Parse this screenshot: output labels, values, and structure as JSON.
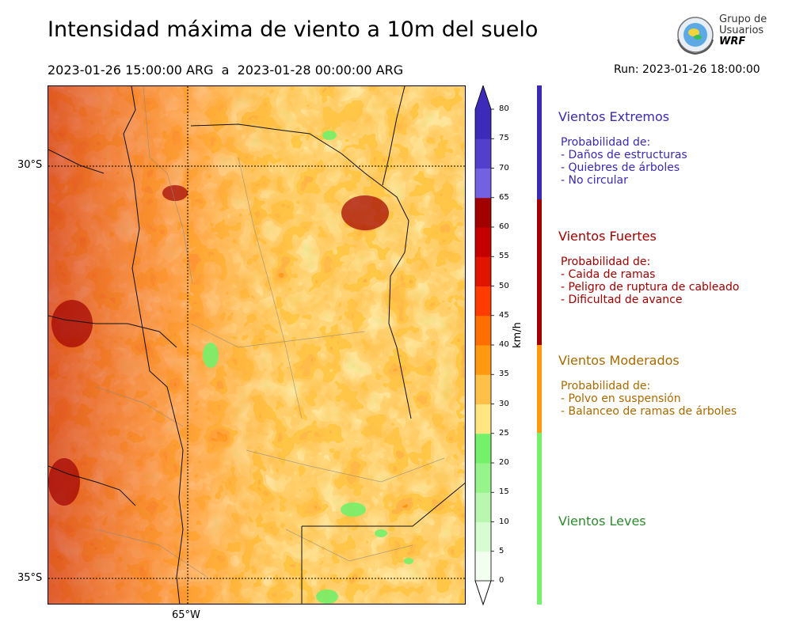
{
  "title": "Intensidad máxima de viento a 10m del suelo",
  "subtitle": "2023-01-26 15:00:00 ARG  a  2023-01-28 00:00:00 ARG",
  "run": "Run: 2023-01-26 18:00:00",
  "logo": {
    "line1": "Grupo de",
    "line2": "Usuarios",
    "line3": "WRF"
  },
  "map": {
    "lat_labels": [
      "30°S",
      "35°S"
    ],
    "lon_labels": [
      "65°W"
    ],
    "shading": "wind speed field (orange/red dominant, green patches in east)"
  },
  "colorbar": {
    "unit": "km/h",
    "ticks": [
      "0",
      "5",
      "10",
      "15",
      "20",
      "25",
      "30",
      "35",
      "40",
      "45",
      "50",
      "55",
      "60",
      "65",
      "70",
      "75",
      "80"
    ],
    "colors": [
      "#f2fff0",
      "#d7fcd2",
      "#b9f7b0",
      "#97f48a",
      "#75f06a",
      "#ffe680",
      "#ffc04a",
      "#ff9a10",
      "#ff6e00",
      "#ff3c00",
      "#e01500",
      "#c40000",
      "#a00000",
      "#7261e0",
      "#5240cc",
      "#3c2ab8"
    ],
    "top_color": "#3c2ab8"
  },
  "categories": [
    {
      "name": "Vientos Extremos",
      "color": "#3a2ab0",
      "desc": [
        " Probabilidad de:",
        " - Daños de estructuras",
        " - Quiebres de árboles",
        " - No circular"
      ]
    },
    {
      "name": "Vientos Fuertes",
      "color": "#a00000",
      "desc": [
        " Probabilidad de:",
        " - Caida de ramas",
        " - Peligro de ruptura de cableado",
        " - Dificultad de avance"
      ]
    },
    {
      "name": "Vientos Moderados",
      "color": "#a86a00",
      "desc": [
        " Probabilidad de:",
        " - Polvo en suspensión",
        " - Balanceo de ramas de árboles"
      ]
    },
    {
      "name": "Vientos Leves",
      "color": "#2e8a2e",
      "desc": []
    }
  ],
  "bar_colors": {
    "extremos": "#3a2ab0",
    "fuertes": "#a00000",
    "moderados": "#ff9a10",
    "leves": "#75f06a"
  }
}
